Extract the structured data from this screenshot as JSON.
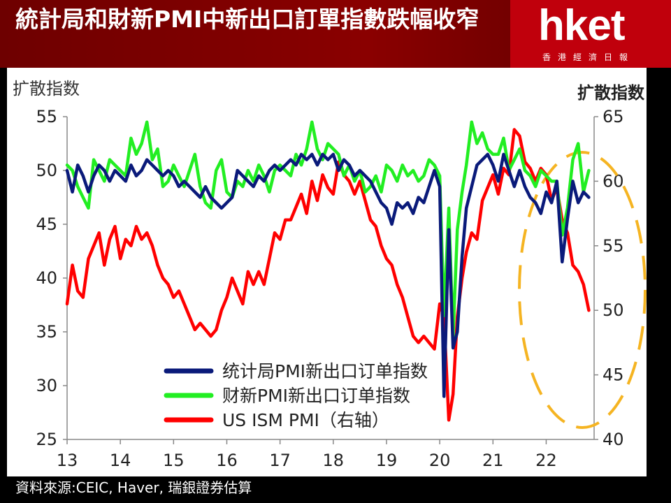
{
  "header": {
    "headline": "統計局和財新PMI中新出口訂單指數跌幅收窄",
    "logo_text": "hket",
    "logo_subtext": "香港經濟日報"
  },
  "footer": {
    "source": "資料來源:CEIC, Haver, 瑞銀證券估算"
  },
  "chart_data": {
    "type": "line",
    "ylabel_left": "扩散指数",
    "ylabel_right": "扩散指数",
    "ylim_left": [
      25,
      55
    ],
    "ylim_right": [
      40,
      65
    ],
    "yticks_left": [
      "55",
      "50",
      "45",
      "40",
      "35",
      "30",
      "25"
    ],
    "yticks_right": [
      "65",
      "60",
      "55",
      "50",
      "45",
      "40"
    ],
    "xlim": [
      2013,
      2022.9
    ],
    "xticks": [
      "13",
      "14",
      "15",
      "16",
      "17",
      "18",
      "19",
      "20",
      "21",
      "22"
    ],
    "legend_position": "bottom-center",
    "grid": false,
    "annotation": "dashed orange ellipse highlighting late 2022",
    "colors": {
      "nbs": "#0a1a7a",
      "caixin": "#22ee22",
      "ism": "#ff0000",
      "ellipse": "#f5b422"
    },
    "series": [
      {
        "name": "统计局PMI新出口订单指数",
        "axis": "left",
        "x": [
          2013.0,
          2013.1,
          2013.2,
          2013.3,
          2013.4,
          2013.5,
          2013.6,
          2013.7,
          2013.8,
          2013.9,
          2014.0,
          2014.1,
          2014.2,
          2014.3,
          2014.4,
          2014.5,
          2014.6,
          2014.7,
          2014.8,
          2014.9,
          2015.0,
          2015.1,
          2015.2,
          2015.3,
          2015.4,
          2015.5,
          2015.6,
          2015.7,
          2015.8,
          2015.9,
          2016.0,
          2016.1,
          2016.2,
          2016.3,
          2016.4,
          2016.5,
          2016.6,
          2016.7,
          2016.8,
          2016.9,
          2017.0,
          2017.1,
          2017.2,
          2017.3,
          2017.4,
          2017.5,
          2017.6,
          2017.7,
          2017.8,
          2017.9,
          2018.0,
          2018.1,
          2018.2,
          2018.3,
          2018.4,
          2018.5,
          2018.6,
          2018.7,
          2018.8,
          2018.9,
          2019.0,
          2019.1,
          2019.2,
          2019.3,
          2019.4,
          2019.5,
          2019.6,
          2019.7,
          2019.8,
          2019.9,
          2020.0,
          2020.08,
          2020.17,
          2020.25,
          2020.33,
          2020.42,
          2020.5,
          2020.6,
          2020.7,
          2020.8,
          2020.9,
          2021.0,
          2021.1,
          2021.2,
          2021.3,
          2021.4,
          2021.5,
          2021.6,
          2021.7,
          2021.8,
          2021.9,
          2022.0,
          2022.1,
          2022.2,
          2022.3,
          2022.4,
          2022.5,
          2022.6,
          2022.7,
          2022.8
        ],
        "values": [
          50.0,
          48.0,
          50.5,
          49.5,
          48.0,
          49.5,
          50.5,
          50.0,
          49.0,
          50.0,
          49.5,
          49.0,
          50.5,
          49.5,
          50.0,
          51.0,
          50.5,
          50.0,
          49.5,
          50.0,
          49.5,
          48.5,
          49.0,
          48.5,
          48.0,
          47.5,
          48.5,
          47.5,
          47.0,
          46.5,
          47.0,
          47.5,
          50.0,
          49.5,
          49.0,
          48.5,
          49.5,
          49.0,
          50.0,
          50.5,
          50.0,
          50.5,
          51.0,
          50.5,
          51.5,
          51.0,
          51.5,
          50.5,
          51.5,
          51.0,
          51.5,
          50.0,
          51.0,
          50.5,
          49.5,
          50.0,
          49.5,
          49.0,
          48.0,
          47.0,
          46.5,
          45.0,
          47.0,
          46.5,
          47.0,
          46.0,
          47.5,
          47.0,
          48.5,
          50.0,
          48.5,
          29.0,
          44.5,
          33.5,
          35.0,
          42.0,
          46.5,
          48.5,
          50.5,
          51.0,
          51.5,
          50.5,
          49.0,
          51.5,
          50.0,
          48.5,
          50.0,
          48.5,
          47.5,
          47.0,
          46.0,
          48.0,
          47.0,
          49.0,
          41.5,
          45.5,
          49.0,
          47.0,
          48.0,
          47.5
        ]
      },
      {
        "name": "财新PMI新出口订单指数",
        "axis": "left",
        "x": [
          2013.0,
          2013.1,
          2013.2,
          2013.3,
          2013.4,
          2013.5,
          2013.6,
          2013.7,
          2013.8,
          2013.9,
          2014.0,
          2014.1,
          2014.2,
          2014.3,
          2014.4,
          2014.5,
          2014.6,
          2014.7,
          2014.8,
          2014.9,
          2015.0,
          2015.1,
          2015.2,
          2015.3,
          2015.4,
          2015.5,
          2015.6,
          2015.7,
          2015.8,
          2015.9,
          2016.0,
          2016.1,
          2016.2,
          2016.3,
          2016.4,
          2016.5,
          2016.6,
          2016.7,
          2016.8,
          2016.9,
          2017.0,
          2017.1,
          2017.2,
          2017.3,
          2017.4,
          2017.5,
          2017.6,
          2017.7,
          2017.8,
          2017.9,
          2018.0,
          2018.1,
          2018.2,
          2018.3,
          2018.4,
          2018.5,
          2018.6,
          2018.7,
          2018.8,
          2018.9,
          2019.0,
          2019.1,
          2019.2,
          2019.3,
          2019.4,
          2019.5,
          2019.6,
          2019.7,
          2019.8,
          2019.9,
          2020.0,
          2020.08,
          2020.17,
          2020.25,
          2020.33,
          2020.42,
          2020.5,
          2020.6,
          2020.7,
          2020.8,
          2020.9,
          2021.0,
          2021.1,
          2021.2,
          2021.3,
          2021.4,
          2021.5,
          2021.6,
          2021.7,
          2021.8,
          2021.9,
          2022.0,
          2022.1,
          2022.2,
          2022.3,
          2022.4,
          2022.5,
          2022.6,
          2022.7,
          2022.8
        ],
        "values": [
          50.5,
          50.0,
          48.5,
          47.5,
          46.5,
          51.0,
          50.0,
          49.0,
          51.0,
          50.5,
          50.0,
          49.5,
          53.0,
          51.5,
          52.5,
          54.5,
          51.0,
          52.0,
          48.5,
          49.0,
          50.5,
          49.5,
          48.5,
          50.0,
          51.5,
          48.5,
          47.0,
          46.5,
          50.0,
          51.0,
          48.0,
          47.5,
          49.0,
          48.5,
          50.0,
          49.0,
          50.5,
          49.5,
          48.0,
          50.0,
          50.5,
          50.0,
          49.5,
          51.5,
          50.5,
          52.0,
          54.5,
          52.0,
          51.0,
          52.5,
          52.0,
          51.5,
          49.5,
          50.5,
          49.0,
          50.0,
          48.0,
          48.5,
          49.5,
          48.0,
          50.5,
          50.0,
          49.0,
          50.5,
          49.5,
          50.0,
          49.0,
          49.5,
          51.0,
          50.5,
          49.5,
          36.5,
          46.5,
          34.5,
          44.5,
          48.0,
          50.5,
          54.5,
          52.5,
          53.5,
          52.0,
          51.5,
          51.5,
          53.0,
          50.0,
          51.0,
          52.0,
          50.0,
          49.5,
          48.5,
          50.0,
          49.5,
          49.0,
          49.0,
          44.0,
          46.5,
          51.0,
          52.5,
          48.0,
          50.0
        ]
      },
      {
        "name": "US ISM PMI（右轴）",
        "axis": "right",
        "x": [
          2013.0,
          2013.1,
          2013.2,
          2013.3,
          2013.4,
          2013.5,
          2013.6,
          2013.7,
          2013.8,
          2013.9,
          2014.0,
          2014.1,
          2014.2,
          2014.3,
          2014.4,
          2014.5,
          2014.6,
          2014.7,
          2014.8,
          2014.9,
          2015.0,
          2015.1,
          2015.2,
          2015.3,
          2015.4,
          2015.5,
          2015.6,
          2015.7,
          2015.8,
          2015.9,
          2016.0,
          2016.1,
          2016.2,
          2016.3,
          2016.4,
          2016.5,
          2016.6,
          2016.7,
          2016.8,
          2016.9,
          2017.0,
          2017.1,
          2017.2,
          2017.3,
          2017.4,
          2017.5,
          2017.6,
          2017.7,
          2017.8,
          2017.9,
          2018.0,
          2018.1,
          2018.2,
          2018.3,
          2018.4,
          2018.5,
          2018.6,
          2018.7,
          2018.8,
          2018.9,
          2019.0,
          2019.1,
          2019.2,
          2019.3,
          2019.4,
          2019.5,
          2019.6,
          2019.7,
          2019.8,
          2019.9,
          2020.0,
          2020.08,
          2020.17,
          2020.25,
          2020.33,
          2020.42,
          2020.5,
          2020.6,
          2020.7,
          2020.8,
          2020.9,
          2021.0,
          2021.1,
          2021.2,
          2021.3,
          2021.4,
          2021.5,
          2021.6,
          2021.7,
          2021.8,
          2021.9,
          2022.0,
          2022.1,
          2022.2,
          2022.3,
          2022.4,
          2022.5,
          2022.6,
          2022.7,
          2022.8
        ],
        "values": [
          50.5,
          53.5,
          51.5,
          51.0,
          54.0,
          55.0,
          56.0,
          53.5,
          55.5,
          56.5,
          54.0,
          55.5,
          55.0,
          56.5,
          55.5,
          56.0,
          55.0,
          53.5,
          52.5,
          52.0,
          51.0,
          51.5,
          50.5,
          49.5,
          48.5,
          49.0,
          48.5,
          48.0,
          48.5,
          50.0,
          51.0,
          52.5,
          51.5,
          50.5,
          53.0,
          52.0,
          53.0,
          52.0,
          54.0,
          56.0,
          55.5,
          57.0,
          57.0,
          58.0,
          59.0,
          57.5,
          60.0,
          58.5,
          60.5,
          59.5,
          59.0,
          61.5,
          60.5,
          60.0,
          59.0,
          60.0,
          58.5,
          57.0,
          56.5,
          55.0,
          54.0,
          53.5,
          52.0,
          51.0,
          49.5,
          48.0,
          47.5,
          48.0,
          47.5,
          47.0,
          50.5,
          49.5,
          41.5,
          43.5,
          49.5,
          52.5,
          54.5,
          56.0,
          55.5,
          58.5,
          59.5,
          60.5,
          59.0,
          61.0,
          60.5,
          64.0,
          63.5,
          61.5,
          61.0,
          60.0,
          61.0,
          60.5,
          58.5,
          59.5,
          57.0,
          56.0,
          53.5,
          53.0,
          52.0,
          50.0
        ]
      }
    ]
  }
}
